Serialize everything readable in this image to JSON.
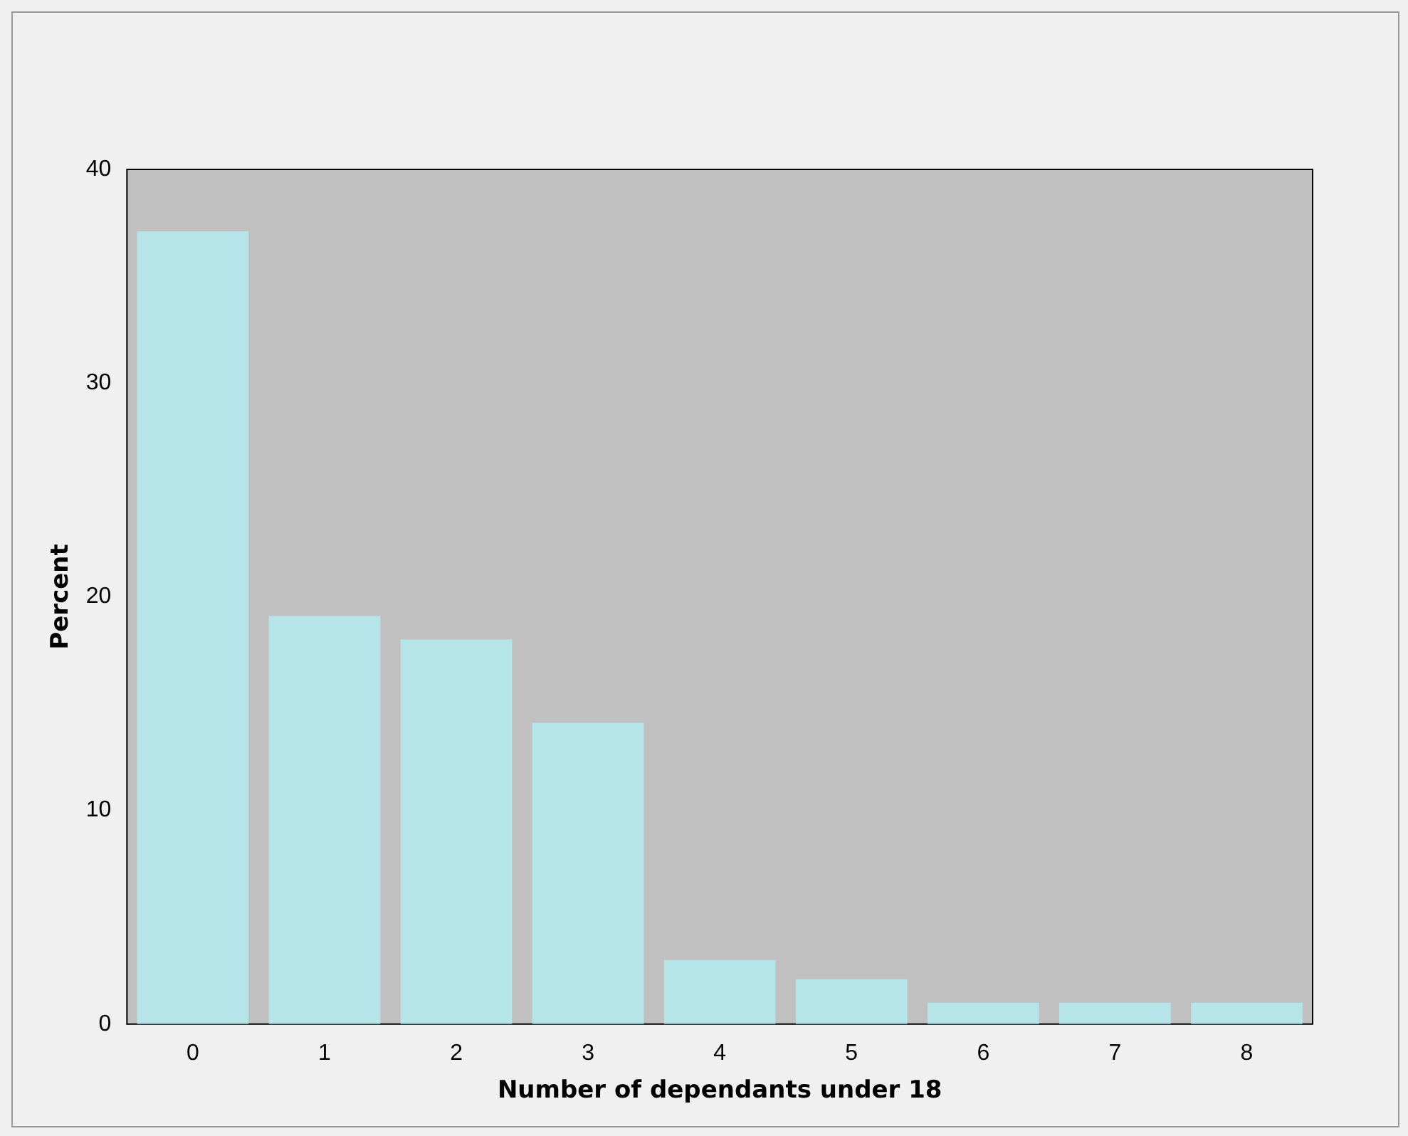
{
  "chart_data": {
    "type": "bar",
    "xlabel": "Number of dependants under 18",
    "ylabel": "Percent",
    "categories": [
      "0",
      "1",
      "2",
      "3",
      "4",
      "5",
      "6",
      "7",
      "8"
    ],
    "values": [
      37.1,
      19.1,
      18.0,
      14.1,
      3.0,
      2.1,
      1.0,
      1.0,
      1.0
    ],
    "color": "#b5e5e8",
    "ylim": [
      0,
      40
    ],
    "yticks": [
      0,
      10,
      20,
      30,
      40
    ],
    "grid": false,
    "legend": false
  }
}
